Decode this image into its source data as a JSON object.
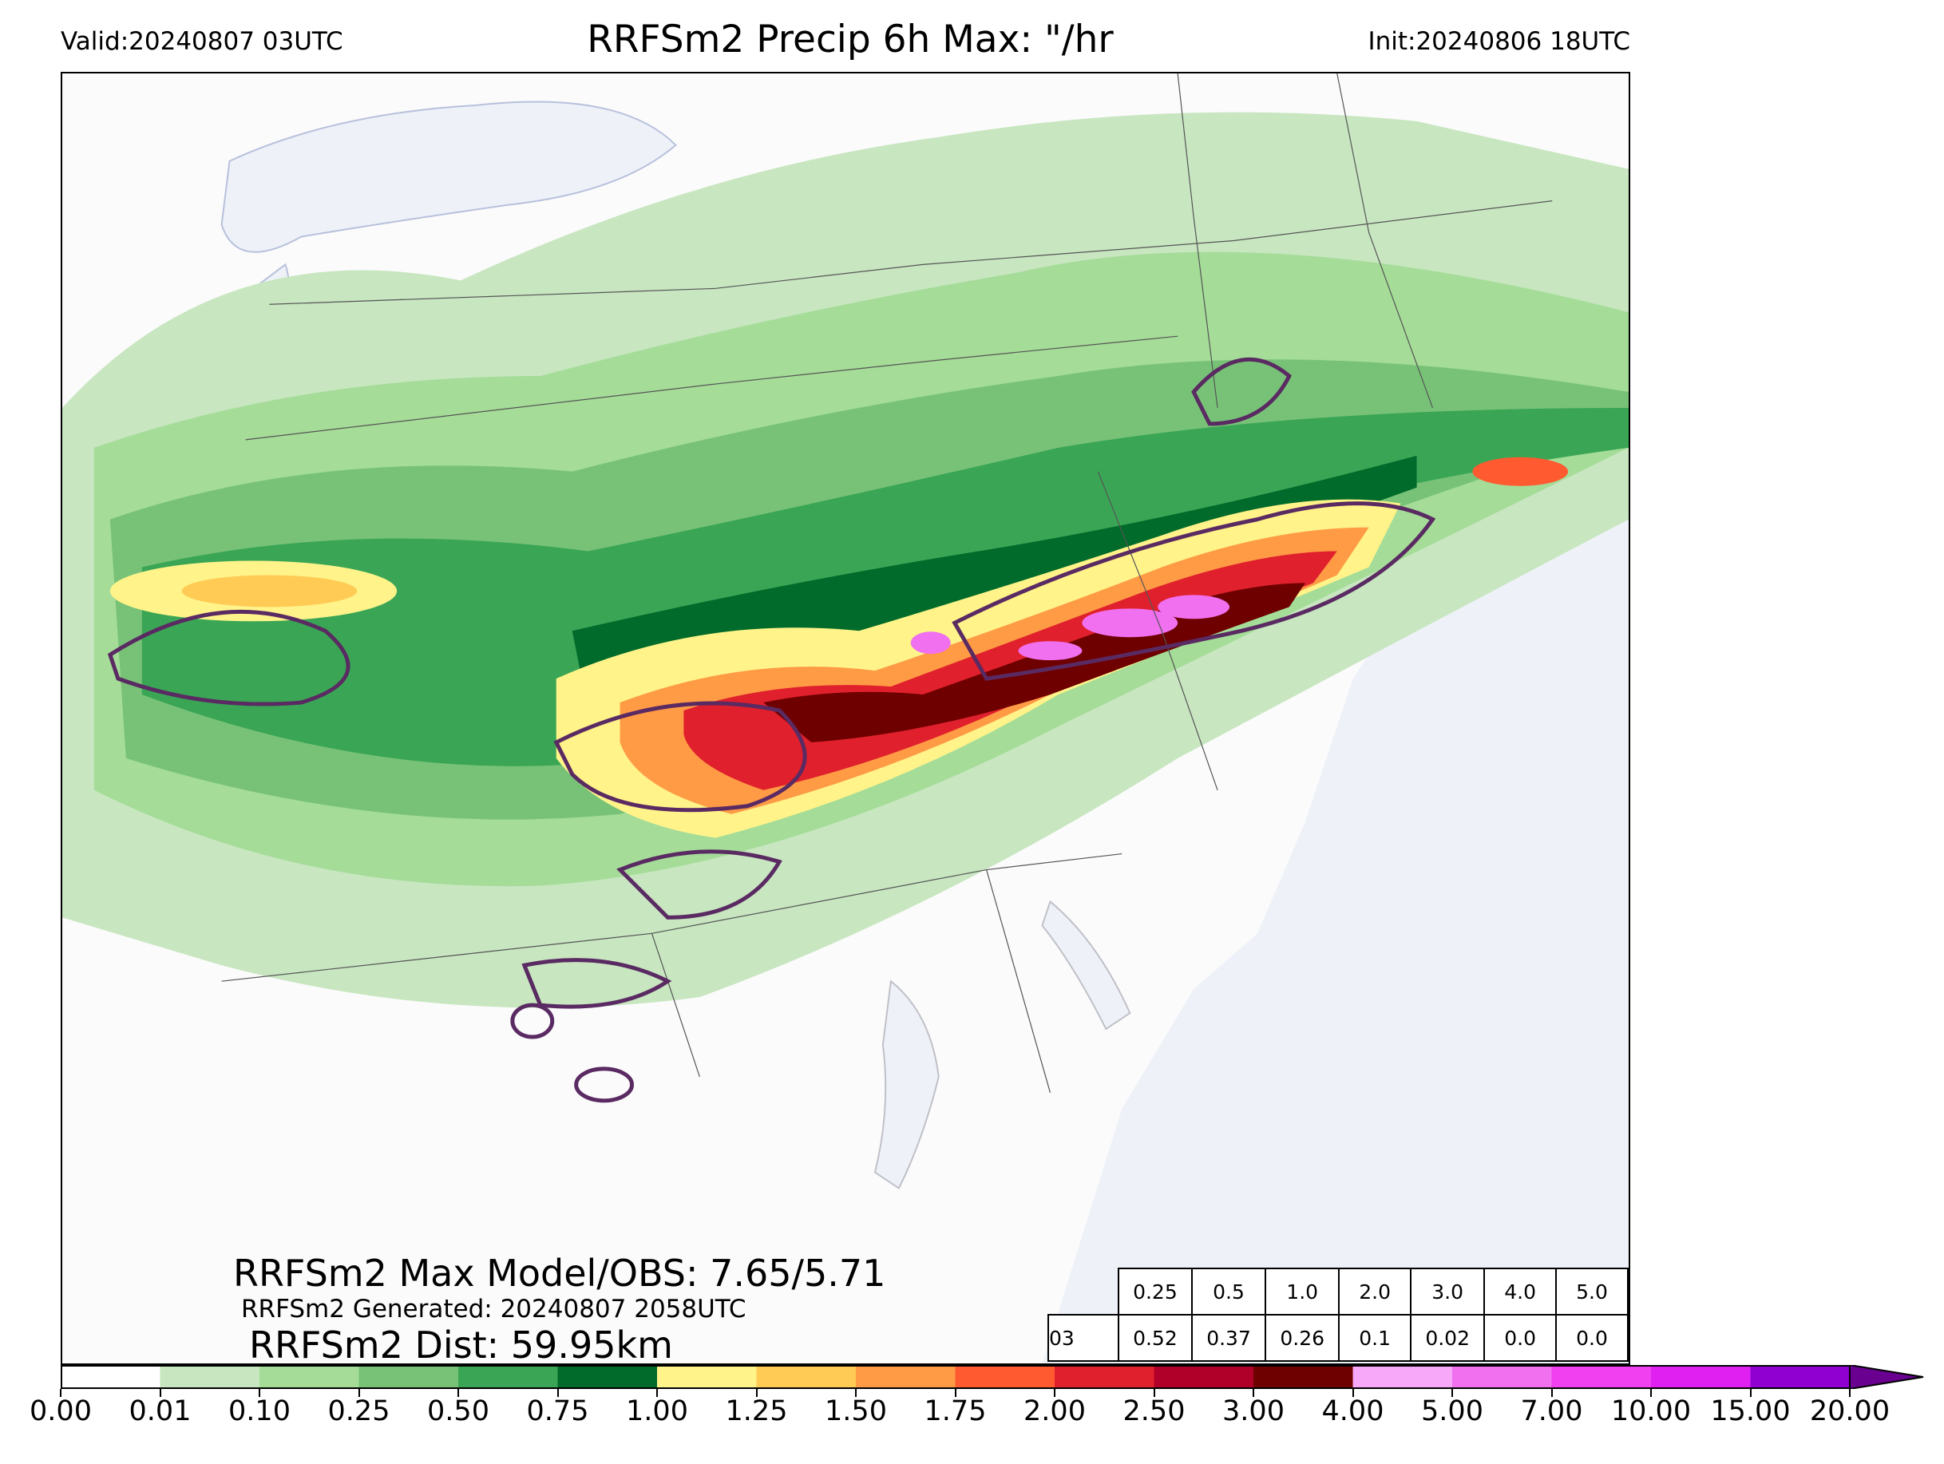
{
  "header": {
    "valid": "Valid:20240807 03UTC",
    "title": "RRFSm2 Precip 6h Max: \"/hr",
    "init": "Init:20240806 18UTC"
  },
  "stats": {
    "max_model_obs": "RRFSm2 Max Model/OBS: 7.65/5.71",
    "generated": "RRFSm2 Generated: 20240807 2058UTC",
    "distance": "RRFSm2 Dist: 59.95km"
  },
  "threshold_table": {
    "headers": [
      "0.25",
      "0.5",
      "1.0",
      "2.0",
      "3.0",
      "4.0",
      "5.0"
    ],
    "row_label": "03",
    "values": [
      "0.52",
      "0.37",
      "0.26",
      "0.1",
      "0.02",
      "0.0",
      "0.0"
    ]
  },
  "colorbar": {
    "levels": [
      "0.00",
      "0.01",
      "0.10",
      "0.25",
      "0.50",
      "0.75",
      "1.00",
      "1.25",
      "1.50",
      "1.75",
      "2.00",
      "2.50",
      "3.00",
      "4.00",
      "5.00",
      "7.00",
      "10.00",
      "15.00",
      "20.00"
    ],
    "colors": [
      "#ffffff",
      "#c8e6c0",
      "#a4dc98",
      "#78c278",
      "#3aa655",
      "#006b2a",
      "#fff38a",
      "#ffcb55",
      "#ff9a45",
      "#ff5a30",
      "#e0202c",
      "#b0002a",
      "#6e0000",
      "#f8a8f8",
      "#f070f0",
      "#f040f0",
      "#e020f0",
      "#9000d0"
    ],
    "extend_color": "#6a0090"
  },
  "map_colors": {
    "water": "#eef2f8",
    "land": "#fbfbfb",
    "border": "#555555",
    "obs_contour": "#5a2a62"
  }
}
